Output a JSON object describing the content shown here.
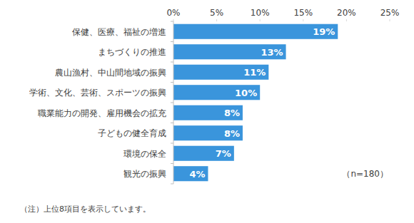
{
  "chart_data": {
    "type": "bar",
    "orientation": "horizontal",
    "categories": [
      "保健、医療、福祉の増進",
      "まちづくりの推進",
      "農山漁村、中山間地域の振興",
      "学術、文化、芸術、スポーツの振興",
      "職業能力の開発、雇用機会の拡充",
      "子どもの健全育成",
      "環境の保全",
      "観光の振興"
    ],
    "values": [
      19,
      13,
      11,
      10,
      8,
      8,
      7,
      4
    ],
    "value_labels": [
      "19%",
      "13%",
      "11%",
      "10%",
      "8%",
      "8%",
      "7%",
      "4%"
    ],
    "color": "#3a95dc",
    "xlim": [
      0,
      25
    ],
    "xticks": [
      {
        "value": 0,
        "label": "0%"
      },
      {
        "value": 5,
        "label": "5%"
      },
      {
        "value": 10,
        "label": "10%"
      },
      {
        "value": 15,
        "label": "15%"
      },
      {
        "value": 20,
        "label": "20%"
      },
      {
        "value": 25,
        "label": "25%"
      }
    ],
    "grid": false,
    "data_labels": true,
    "annotations": [
      "（n=180）",
      "（注）上位8項目を表示しています。"
    ]
  }
}
